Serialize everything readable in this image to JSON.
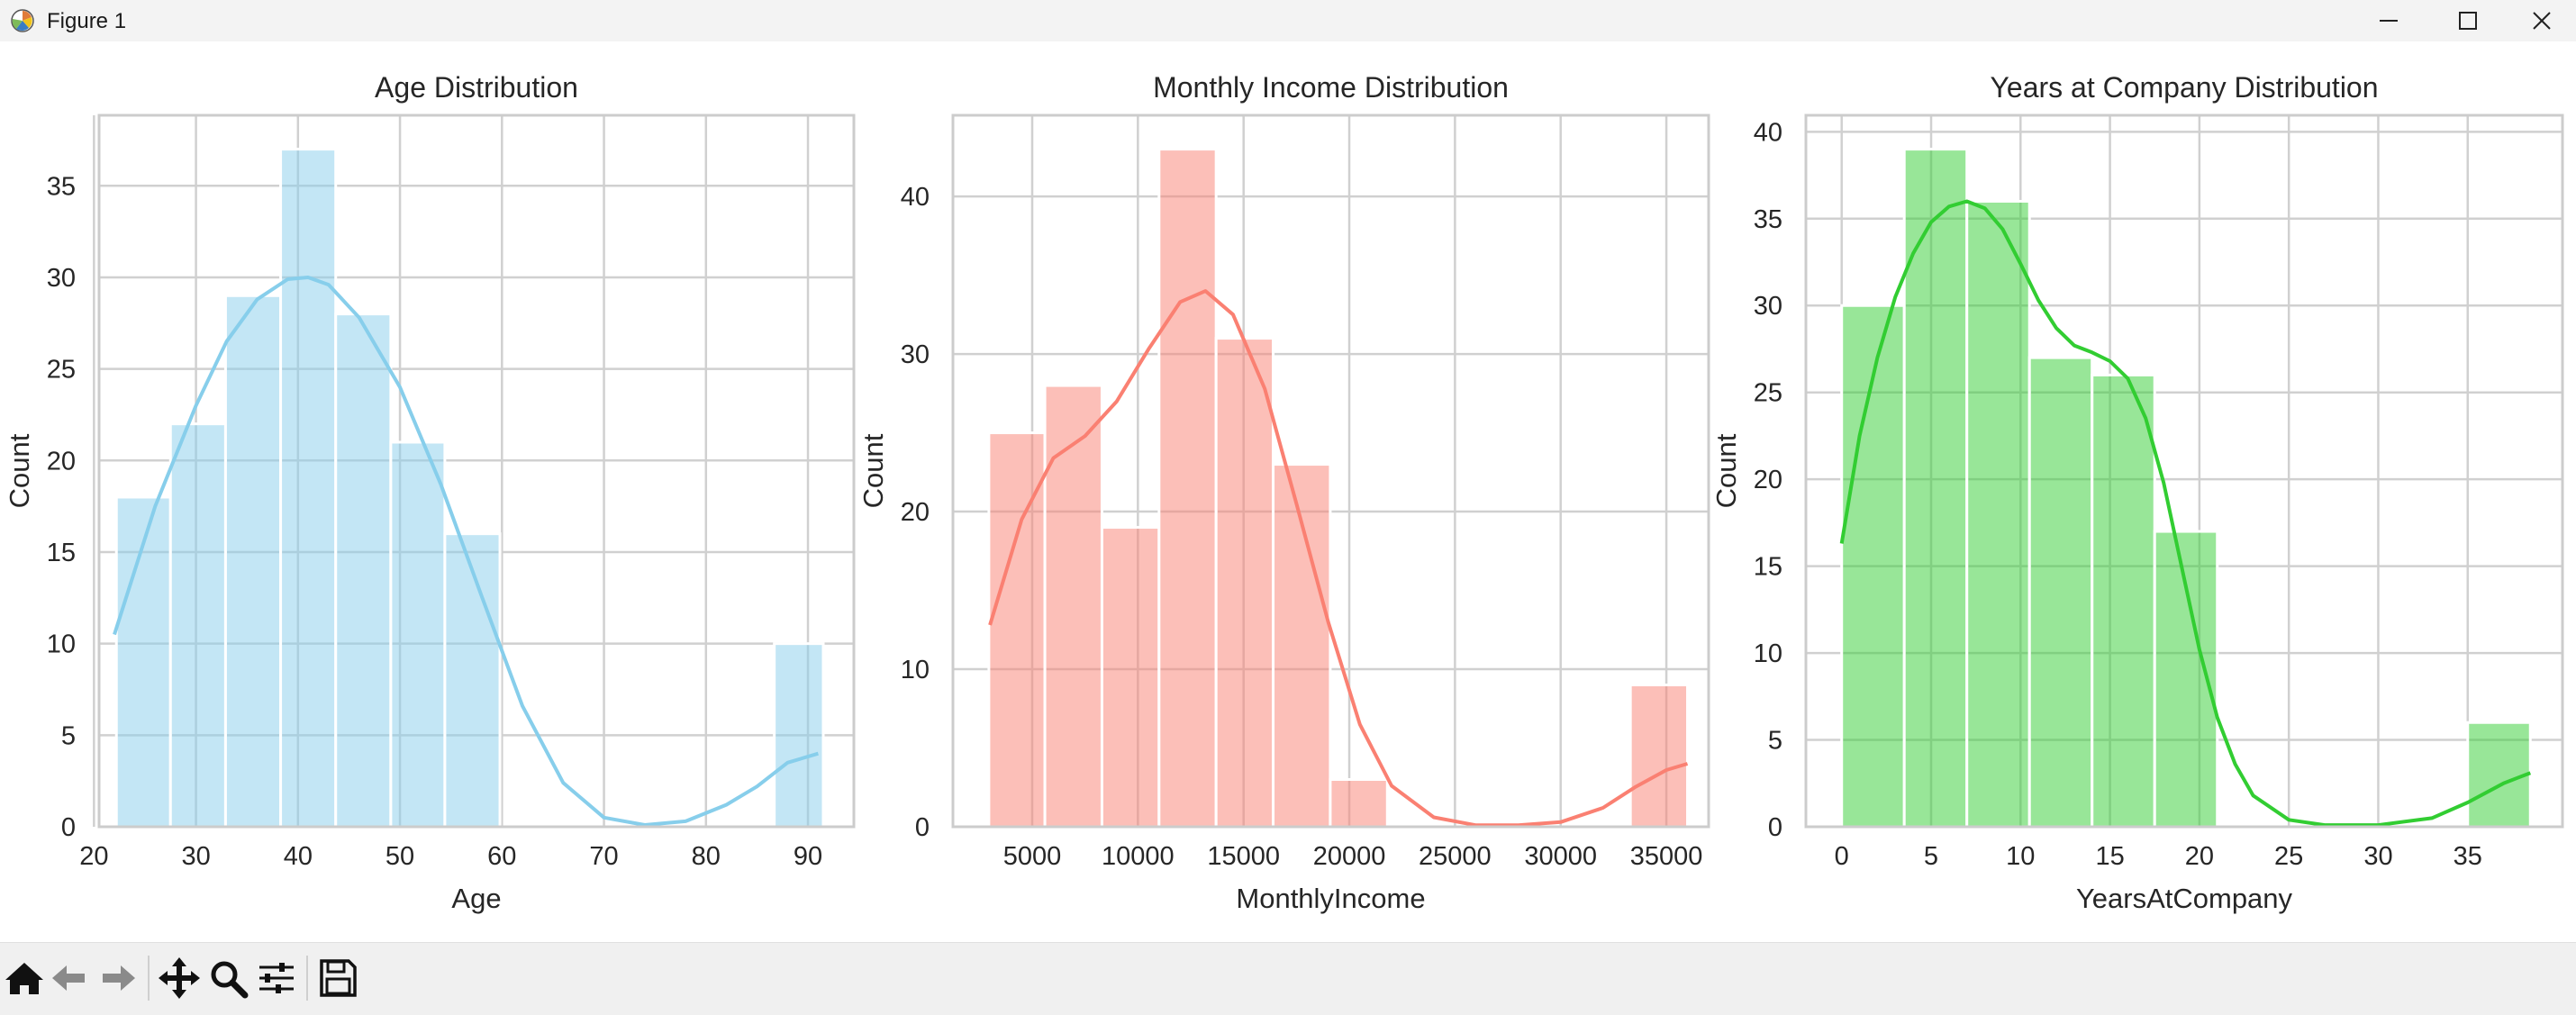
{
  "window": {
    "title": "Figure 1",
    "icon": "matplotlib-icon",
    "controls": [
      "minimize-icon",
      "maximize-icon",
      "close-icon"
    ]
  },
  "toolbar": {
    "buttons": [
      "home-icon",
      "back-icon",
      "forward-icon",
      "pan-icon",
      "zoom-icon",
      "configure-subplots-icon",
      "save-icon"
    ]
  },
  "chart_data": [
    {
      "type": "bar",
      "title": "Age Distribution",
      "xlabel": "Age",
      "ylabel": "Count",
      "color": "#87ceeb",
      "xlim": [
        20.5,
        94.5
      ],
      "ylim": [
        0,
        38.85
      ],
      "xticks": [
        20,
        30,
        40,
        50,
        60,
        70,
        80,
        90
      ],
      "yticks": [
        0,
        5,
        10,
        15,
        20,
        25,
        30,
        35
      ],
      "bins": [
        {
          "x0": 22.2,
          "x1": 27.5,
          "count": 18
        },
        {
          "x0": 27.5,
          "x1": 32.9,
          "count": 22
        },
        {
          "x0": 32.9,
          "x1": 38.3,
          "count": 29
        },
        {
          "x0": 38.3,
          "x1": 43.7,
          "count": 37
        },
        {
          "x0": 43.7,
          "x1": 49.1,
          "count": 28
        },
        {
          "x0": 49.1,
          "x1": 54.4,
          "count": 21
        },
        {
          "x0": 54.4,
          "x1": 59.8,
          "count": 16
        },
        {
          "x0": 59.8,
          "x1": 65.2,
          "count": 0
        },
        {
          "x0": 65.2,
          "x1": 70.6,
          "count": 0
        },
        {
          "x0": 70.6,
          "x1": 75.9,
          "count": 0
        },
        {
          "x0": 75.9,
          "x1": 81.3,
          "count": 0
        },
        {
          "x0": 81.3,
          "x1": 86.7,
          "count": 0
        },
        {
          "x0": 86.7,
          "x1": 91.5,
          "count": 10
        }
      ],
      "kde": {
        "x": [
          22,
          26,
          30,
          33,
          36,
          39,
          41,
          43,
          46,
          50,
          54,
          58,
          62,
          66,
          70,
          74,
          78,
          82,
          85,
          88,
          91
        ],
        "y": [
          10.5,
          17.5,
          23.0,
          26.5,
          28.8,
          29.9,
          30.0,
          29.6,
          27.8,
          24.0,
          18.7,
          12.6,
          6.6,
          2.4,
          0.5,
          0.1,
          0.3,
          1.2,
          2.2,
          3.5,
          4.0
        ]
      }
    },
    {
      "type": "bar",
      "title": "Monthly Income Distribution",
      "xlabel": "MonthlyIncome",
      "ylabel": "Count",
      "color": "#fa8072",
      "xlim": [
        1250,
        37000
      ],
      "ylim": [
        0,
        45.15
      ],
      "xticks": [
        5000,
        10000,
        15000,
        20000,
        25000,
        30000,
        35000
      ],
      "yticks": [
        0,
        10,
        20,
        30,
        40
      ],
      "bins": [
        {
          "x0": 2950,
          "x1": 5600,
          "count": 25
        },
        {
          "x0": 5600,
          "x1": 8300,
          "count": 28
        },
        {
          "x0": 8300,
          "x1": 11000,
          "count": 19
        },
        {
          "x0": 11000,
          "x1": 13700,
          "count": 43
        },
        {
          "x0": 13700,
          "x1": 16400,
          "count": 31
        },
        {
          "x0": 16400,
          "x1": 19100,
          "count": 23
        },
        {
          "x0": 19100,
          "x1": 21800,
          "count": 3
        },
        {
          "x0": 21800,
          "x1": 24500,
          "count": 0
        },
        {
          "x0": 24500,
          "x1": 27200,
          "count": 0
        },
        {
          "x0": 27200,
          "x1": 29900,
          "count": 0
        },
        {
          "x0": 29900,
          "x1": 32600,
          "count": 0
        },
        {
          "x0": 33300,
          "x1": 36000,
          "count": 9
        }
      ],
      "kde": {
        "x": [
          3000,
          4500,
          6000,
          7500,
          9000,
          10500,
          12000,
          13200,
          14500,
          16000,
          17500,
          19000,
          20500,
          22000,
          24000,
          26000,
          28000,
          30000,
          32000,
          33500,
          35000,
          36000
        ],
        "y": [
          12.8,
          19.5,
          23.4,
          24.8,
          27.0,
          30.3,
          33.3,
          34.0,
          32.5,
          27.8,
          20.5,
          13.0,
          6.5,
          2.6,
          0.6,
          0.1,
          0.1,
          0.3,
          1.2,
          2.5,
          3.6,
          4.0
        ]
      }
    },
    {
      "type": "bar",
      "title": "Years at Company Distribution",
      "xlabel": "YearsAtCompany",
      "ylabel": "Count",
      "color": "#32cd32",
      "xlim": [
        -2.0,
        40.3
      ],
      "ylim": [
        0,
        40.95
      ],
      "xticks": [
        0,
        5,
        10,
        15,
        20,
        25,
        30,
        35
      ],
      "yticks": [
        0,
        5,
        10,
        15,
        20,
        25,
        30,
        35,
        40
      ],
      "bins": [
        {
          "x0": 0,
          "x1": 3.5,
          "count": 30
        },
        {
          "x0": 3.5,
          "x1": 7.0,
          "count": 39
        },
        {
          "x0": 7.0,
          "x1": 10.5,
          "count": 36
        },
        {
          "x0": 10.5,
          "x1": 14.0,
          "count": 27
        },
        {
          "x0": 14.0,
          "x1": 17.5,
          "count": 26
        },
        {
          "x0": 17.5,
          "x1": 21.0,
          "count": 17
        },
        {
          "x0": 21.0,
          "x1": 24.5,
          "count": 0
        },
        {
          "x0": 24.5,
          "x1": 28.0,
          "count": 0
        },
        {
          "x0": 28.0,
          "x1": 31.5,
          "count": 0
        },
        {
          "x0": 31.5,
          "x1": 35.0,
          "count": 0
        },
        {
          "x0": 35.0,
          "x1": 38.5,
          "count": 6
        }
      ],
      "kde": {
        "x": [
          0,
          1,
          2,
          3,
          4,
          5,
          6,
          7,
          8,
          9,
          10,
          11,
          12,
          13,
          14,
          15,
          16,
          17,
          18,
          19,
          20,
          21,
          22,
          23,
          25,
          27,
          30,
          33,
          35,
          37,
          38.5
        ],
        "y": [
          16.3,
          22.5,
          27.0,
          30.5,
          33.0,
          34.8,
          35.7,
          36.0,
          35.6,
          34.4,
          32.4,
          30.3,
          28.7,
          27.7,
          27.3,
          26.8,
          25.8,
          23.5,
          19.8,
          15.0,
          10.2,
          6.3,
          3.6,
          1.8,
          0.4,
          0.1,
          0.1,
          0.5,
          1.4,
          2.5,
          3.1
        ]
      }
    }
  ]
}
